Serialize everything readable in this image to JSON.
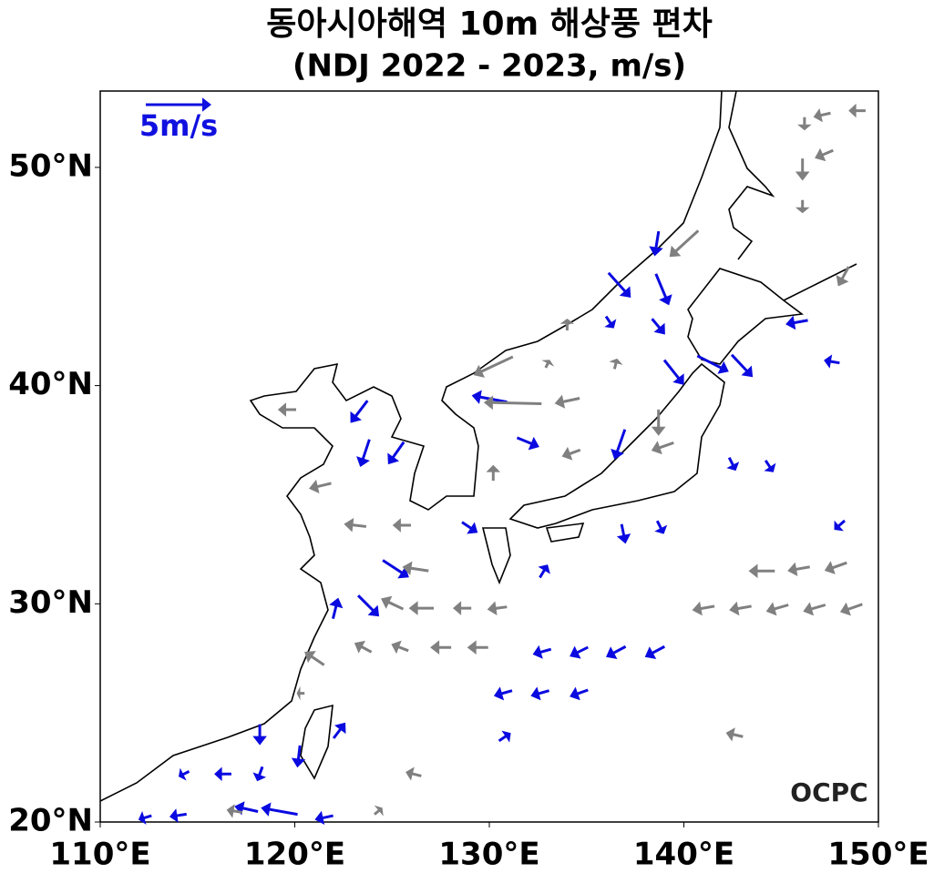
{
  "chart_data": {
    "type": "quiver",
    "title": "동아시아해역 10m 해상풍 편차",
    "subtitle": "(NDJ 2022 - 2023, m/s)",
    "xlim": [
      110,
      150
    ],
    "ylim": [
      20,
      53.5
    ],
    "xticks": [
      {
        "value": 110,
        "label": "110°E"
      },
      {
        "value": 120,
        "label": "120°E"
      },
      {
        "value": 130,
        "label": "130°E"
      },
      {
        "value": 140,
        "label": "140°E"
      },
      {
        "value": 150,
        "label": "150°E"
      }
    ],
    "yticks": [
      {
        "value": 20,
        "label": "20°N"
      },
      {
        "value": 30,
        "label": "30°N"
      },
      {
        "value": 40,
        "label": "40°N"
      },
      {
        "value": 50,
        "label": "50°N"
      }
    ],
    "key": {
      "value": 5,
      "label": "5m/s",
      "color": "#1010e0"
    },
    "watermark": "OCPC",
    "series": [
      {
        "color": "#0a0ae0",
        "x": [
          112.3,
          114,
          119.2,
          117.5,
          121.5,
          116.3,
          114.3,
          118.2,
          118.2,
          120.2,
          122.3,
          130.8,
          130.7,
          132.6,
          134.6,
          132.7,
          134.6,
          136.5,
          138.5,
          123.8,
          122.1,
          125.2,
          129,
          132.8,
          136.9,
          138.8,
          148,
          132,
          136.7,
          142.5,
          144.4,
          123.3,
          123.6,
          125.2,
          130,
          139.5,
          141.5,
          143,
          147.6,
          145.8,
          136.2,
          138.7,
          136.7,
          138.9,
          138.6
        ],
        "y": [
          20.2,
          20.3,
          20.5,
          20.6,
          20.2,
          22.2,
          22.2,
          22.2,
          24,
          23,
          24.2,
          23.9,
          25.9,
          25.9,
          25.9,
          27.8,
          27.8,
          27.8,
          27.8,
          29.9,
          29.8,
          31.6,
          33.5,
          31.5,
          33.2,
          33.5,
          33.6,
          37.4,
          37.3,
          36.4,
          36.3,
          38.8,
          36.9,
          36.9,
          39.4,
          40.6,
          41,
          40.9,
          41.1,
          42.9,
          42.9,
          42.7,
          44.6,
          44.4,
          46.5
        ],
        "u": [
          -1,
          -1.3,
          -2.8,
          -1.8,
          -1.4,
          -1.3,
          -0.8,
          -0.4,
          0,
          -0.2,
          0.9,
          0.9,
          -1.4,
          -1.4,
          -1.4,
          -1.4,
          -1.4,
          -1.5,
          -1.5,
          1.6,
          0.4,
          2,
          1.2,
          0.6,
          0.3,
          0.5,
          -0.8,
          1.7,
          -0.8,
          0.5,
          0.6,
          -1.3,
          -0.7,
          -1.2,
          -2.7,
          1.5,
          2.4,
          1.6,
          -1.2,
          -1.7,
          0.6,
          1,
          1.7,
          1,
          -0.3
        ],
        "v": [
          -0.3,
          -0.2,
          0.5,
          0.4,
          -0.3,
          0,
          -0.4,
          -1.1,
          -1.6,
          -1.7,
          1.2,
          0.6,
          -0.4,
          -0.4,
          -0.5,
          -0.4,
          -0.7,
          -0.8,
          -0.8,
          -1.6,
          1.6,
          -1.3,
          -0.8,
          1,
          -1.5,
          -1,
          -0.7,
          -0.7,
          -2.3,
          -1,
          -0.9,
          -1.7,
          -2.1,
          -1.7,
          0.5,
          -1.9,
          -1.2,
          -1.7,
          0.2,
          -0.3,
          -0.9,
          -1.2,
          -1.9,
          -2.4,
          -1.9
        ]
      },
      {
        "color": "#808080",
        "x": [
          119.6,
          130.2,
          140,
          131.2,
          134,
          138.7,
          121.3,
          123.1,
          125.5,
          126.2,
          125,
          126.5,
          128.6,
          130.4,
          123.5,
          125.4,
          127.5,
          129.4,
          144,
          145.9,
          147.8,
          141,
          142.9,
          144.8,
          146.7,
          148.6,
          146.1,
          148.9,
          147.1,
          147.2,
          146.2,
          146.1,
          148.2,
          130.2,
          134,
          133,
          136.5,
          134.2,
          138.9,
          121,
          120.3,
          116.9,
          124.3,
          126.1,
          142.6
        ],
        "y": [
          38.9,
          40.9,
          46.5,
          39.2,
          39.3,
          38.3,
          35.4,
          33.6,
          33.6,
          31.6,
          30,
          29.8,
          29.8,
          29.8,
          28,
          28,
          28,
          28,
          31.5,
          31.6,
          31.7,
          29.8,
          29.8,
          29.8,
          29.8,
          29.8,
          49.9,
          52.6,
          52.4,
          50.6,
          52,
          48.2,
          45,
          36,
          42.8,
          41,
          41,
          36.9,
          37.2,
          27.5,
          25.9,
          20.5,
          20.5,
          22.2,
          24
        ],
        "u": [
          -1.4,
          -3,
          -2.2,
          -4.4,
          -1.9,
          0,
          -1.7,
          -1.7,
          -1.4,
          -2,
          -1.7,
          -1.9,
          -1.4,
          -1.5,
          -1.3,
          -1.3,
          -1.6,
          -1.6,
          -2,
          -1.7,
          -1.7,
          -1.7,
          -1.7,
          -1.7,
          -1.7,
          -1.7,
          0,
          -1.3,
          -1.3,
          -1.4,
          0,
          0,
          -0.8,
          0,
          0,
          0.3,
          0.2,
          -1.4,
          -1.7,
          -1.5,
          -0.6,
          -1.2,
          0.6,
          -1.2,
          -1.3
        ],
        "v": [
          0,
          -1.4,
          -2,
          0.1,
          -0.4,
          -2,
          -0.4,
          0.2,
          0,
          0.3,
          0.8,
          0,
          0,
          -0.2,
          0.7,
          0.5,
          0,
          0,
          0,
          -0.3,
          -0.6,
          -0.3,
          -0.3,
          -0.5,
          -0.5,
          -0.6,
          -1.7,
          0,
          -0.3,
          -0.6,
          -1,
          -1,
          -1.5,
          1.2,
          0.9,
          0.6,
          0.8,
          -0.5,
          -0.6,
          1,
          0,
          0.2,
          0.5,
          0.3,
          0.3
        ]
      }
    ]
  }
}
